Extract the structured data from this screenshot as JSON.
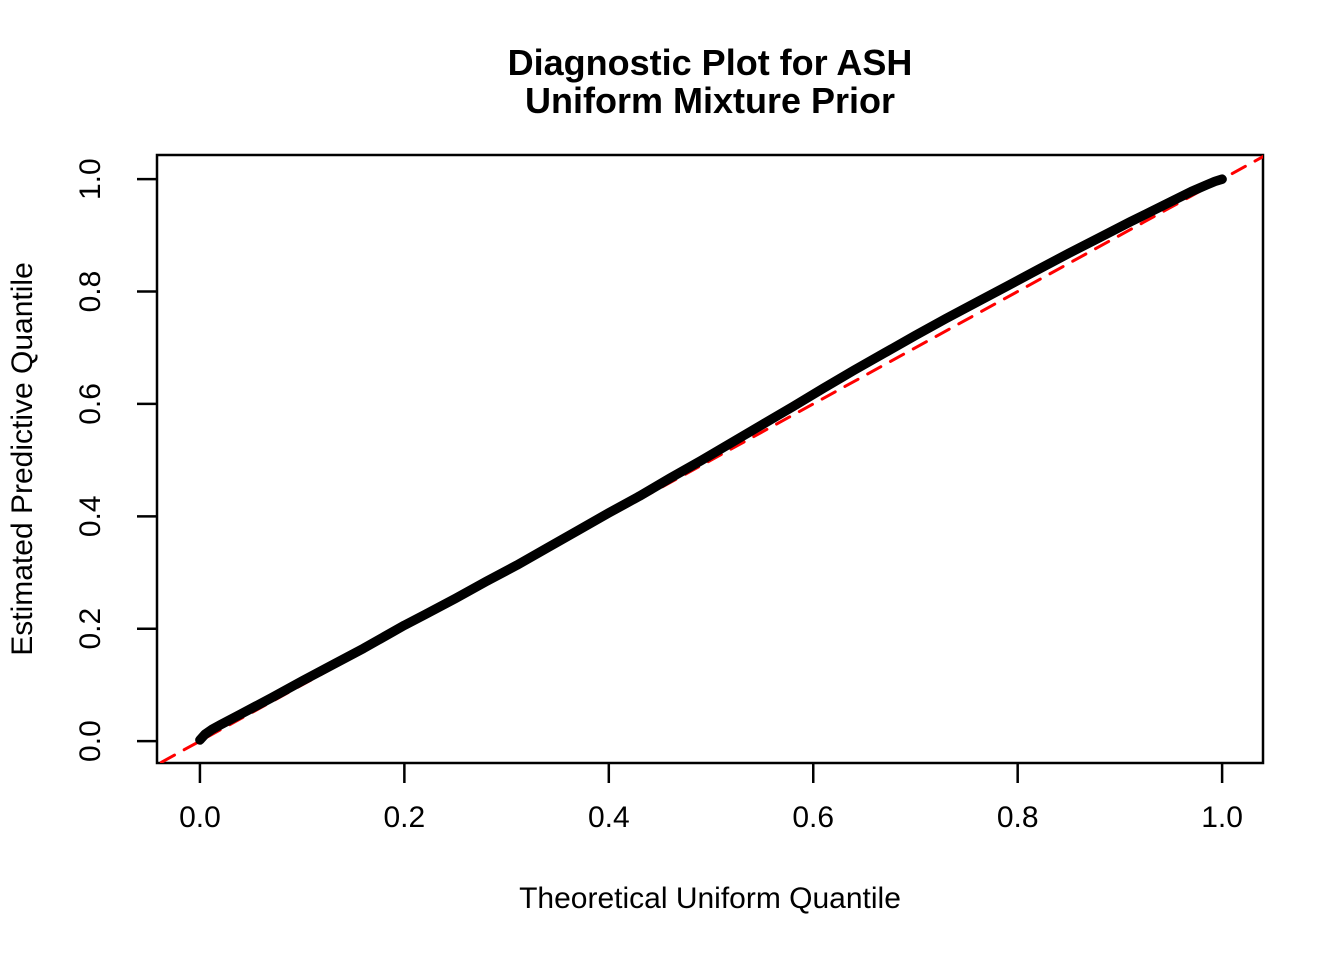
{
  "chart_data": {
    "type": "line",
    "title_line1": "Diagnostic Plot for ASH",
    "title_line2": "Uniform Mixture Prior",
    "xlabel": "Theoretical Uniform Quantile",
    "ylabel": "Estimated Predictive Quantile",
    "xlim": [
      -0.042,
      1.04
    ],
    "ylim": [
      -0.039,
      1.043
    ],
    "grid": false,
    "legend": "none",
    "background_color": "#FFFFFF",
    "axis_color": "#000000",
    "x_ticks": [
      {
        "value": 0.0,
        "label": "0.0"
      },
      {
        "value": 0.2,
        "label": "0.2"
      },
      {
        "value": 0.4,
        "label": "0.4"
      },
      {
        "value": 0.6,
        "label": "0.6"
      },
      {
        "value": 0.8,
        "label": "0.8"
      },
      {
        "value": 1.0,
        "label": "1.0"
      }
    ],
    "y_ticks": [
      {
        "value": 0.0,
        "label": "0.0"
      },
      {
        "value": 0.2,
        "label": "0.2"
      },
      {
        "value": 0.4,
        "label": "0.4"
      },
      {
        "value": 0.6,
        "label": "0.6"
      },
      {
        "value": 0.8,
        "label": "0.8"
      },
      {
        "value": 1.0,
        "label": "1.0"
      }
    ],
    "series": [
      {
        "name": "reference-line-y-equals-x",
        "color": "#FF0000",
        "style": "dashed",
        "width": 3,
        "points": [
          [
            -0.06,
            -0.06
          ],
          [
            1.06,
            1.06
          ]
        ]
      },
      {
        "name": "estimated-predictive-quantile-curve",
        "color": "#000000",
        "style": "solid",
        "width": 9.5,
        "points": [
          [
            0.0,
            0.002
          ],
          [
            0.005,
            0.012
          ],
          [
            0.012,
            0.021
          ],
          [
            0.02,
            0.029
          ],
          [
            0.04,
            0.048
          ],
          [
            0.07,
            0.077
          ],
          [
            0.1,
            0.107
          ],
          [
            0.13,
            0.136
          ],
          [
            0.16,
            0.165
          ],
          [
            0.2,
            0.206
          ],
          [
            0.22,
            0.225
          ],
          [
            0.25,
            0.254
          ],
          [
            0.28,
            0.284
          ],
          [
            0.31,
            0.313
          ],
          [
            0.34,
            0.344
          ],
          [
            0.37,
            0.375
          ],
          [
            0.4,
            0.406
          ],
          [
            0.43,
            0.436
          ],
          [
            0.46,
            0.468
          ],
          [
            0.49,
            0.499
          ],
          [
            0.52,
            0.531
          ],
          [
            0.55,
            0.563
          ],
          [
            0.58,
            0.595
          ],
          [
            0.61,
            0.628
          ],
          [
            0.64,
            0.66
          ],
          [
            0.67,
            0.691
          ],
          [
            0.7,
            0.722
          ],
          [
            0.73,
            0.752
          ],
          [
            0.76,
            0.781
          ],
          [
            0.79,
            0.81
          ],
          [
            0.82,
            0.839
          ],
          [
            0.85,
            0.868
          ],
          [
            0.88,
            0.896
          ],
          [
            0.91,
            0.924
          ],
          [
            0.93,
            0.942
          ],
          [
            0.95,
            0.96
          ],
          [
            0.97,
            0.978
          ],
          [
            0.985,
            0.99
          ],
          [
            0.993,
            0.996
          ],
          [
            1.0,
            1.0
          ]
        ]
      }
    ]
  }
}
